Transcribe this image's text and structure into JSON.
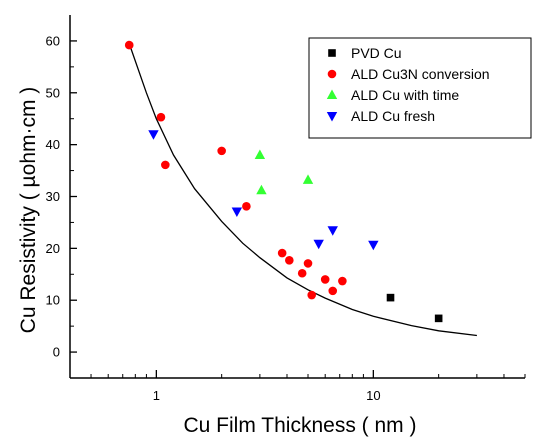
{
  "chart_data": {
    "type": "scatter",
    "xlabel": "Cu Film Thickness ( nm )",
    "ylabel": "Cu Resistivity ( µohm·cm )",
    "x_scale": "log",
    "xlim": [
      0.4,
      50
    ],
    "ylim": [
      -5,
      65
    ],
    "x_ticks": [
      {
        "value": 1,
        "label": "1"
      },
      {
        "value": 10,
        "label": "10"
      }
    ],
    "y_ticks": [
      {
        "value": 0,
        "label": "0"
      },
      {
        "value": 10,
        "label": "10"
      },
      {
        "value": 20,
        "label": "20"
      },
      {
        "value": 30,
        "label": "30"
      },
      {
        "value": 40,
        "label": "40"
      },
      {
        "value": 50,
        "label": "50"
      },
      {
        "value": 60,
        "label": "60"
      }
    ],
    "grid": false,
    "legend_position": "top-right",
    "series": [
      {
        "name": "PVD Cu",
        "marker": "square",
        "color": "#000000",
        "points": [
          {
            "x": 12,
            "y": 10.5
          },
          {
            "x": 20,
            "y": 6.5
          }
        ]
      },
      {
        "name": "ALD Cu3N conversion",
        "marker": "circle",
        "color": "#ff0000",
        "points": [
          {
            "x": 0.75,
            "y": 59.2
          },
          {
            "x": 1.05,
            "y": 45.3
          },
          {
            "x": 1.1,
            "y": 36.1
          },
          {
            "x": 2.0,
            "y": 38.8
          },
          {
            "x": 2.6,
            "y": 28.1
          },
          {
            "x": 3.8,
            "y": 19.1
          },
          {
            "x": 4.1,
            "y": 17.7
          },
          {
            "x": 4.7,
            "y": 15.2
          },
          {
            "x": 5.0,
            "y": 17.1
          },
          {
            "x": 5.2,
            "y": 11.0
          },
          {
            "x": 6.0,
            "y": 14.0
          },
          {
            "x": 6.5,
            "y": 11.8
          },
          {
            "x": 7.2,
            "y": 13.7
          }
        ]
      },
      {
        "name": "ALD Cu with time",
        "marker": "triangle-up",
        "color": "#33ff33",
        "points": [
          {
            "x": 3.0,
            "y": 38.0
          },
          {
            "x": 3.05,
            "y": 31.2
          },
          {
            "x": 5.0,
            "y": 33.2
          }
        ]
      },
      {
        "name": "ALD Cu fresh",
        "marker": "triangle-down",
        "color": "#0000ff",
        "points": [
          {
            "x": 0.97,
            "y": 42.0
          },
          {
            "x": 2.35,
            "y": 27.1
          },
          {
            "x": 5.6,
            "y": 20.9
          },
          {
            "x": 6.5,
            "y": 23.5
          },
          {
            "x": 10.0,
            "y": 20.7
          }
        ]
      }
    ],
    "fit_curve": {
      "color": "#000000",
      "points": [
        {
          "x": 0.75,
          "y": 59.5
        },
        {
          "x": 0.9,
          "y": 50.0
        },
        {
          "x": 1.0,
          "y": 45.0
        },
        {
          "x": 1.2,
          "y": 38.0
        },
        {
          "x": 1.5,
          "y": 31.5
        },
        {
          "x": 2.0,
          "y": 25.2
        },
        {
          "x": 2.5,
          "y": 21.0
        },
        {
          "x": 3.0,
          "y": 18.2
        },
        {
          "x": 4.0,
          "y": 14.3
        },
        {
          "x": 5.0,
          "y": 12.0
        },
        {
          "x": 6.0,
          "y": 10.4
        },
        {
          "x": 8.0,
          "y": 8.2
        },
        {
          "x": 10.0,
          "y": 6.9
        },
        {
          "x": 15.0,
          "y": 5.1
        },
        {
          "x": 20.0,
          "y": 4.1
        },
        {
          "x": 30.0,
          "y": 3.2
        }
      ]
    }
  }
}
